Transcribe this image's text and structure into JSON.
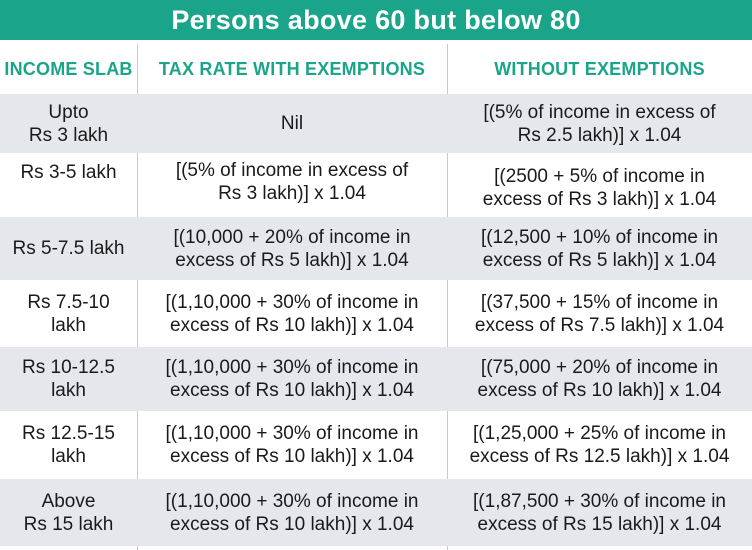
{
  "title": "Persons above 60 but below 80",
  "columns": {
    "slab": "INCOME SLAB",
    "with": "TAX RATE WITH EXEMPTIONS",
    "without": "WITHOUT EXEMPTIONS"
  },
  "rows": [
    {
      "slab": "Upto\nRs 3 lakh",
      "with": "Nil",
      "without": "[(5% of income in excess of\nRs 2.5 lakh)] x 1.04"
    },
    {
      "slab": "Rs 3-5 lakh",
      "with": "[(5% of income in excess of\nRs 3 lakh)] x 1.04",
      "without": "[(2500 + 5% of income in\nexcess of Rs 3 lakh)] x 1.04"
    },
    {
      "slab": "Rs 5-7.5 lakh",
      "with": "[(10,000 + 20% of income in\nexcess of Rs 5 lakh)] x 1.04",
      "without": "[(12,500 + 10% of income in\nexcess of Rs 5 lakh)] x 1.04"
    },
    {
      "slab": "Rs 7.5-10\nlakh",
      "with": "[(1,10,000 + 30% of income in\nexcess of Rs 10 lakh)] x 1.04",
      "without": "[(37,500 + 15% of income in\nexcess of Rs 7.5 lakh)] x 1.04"
    },
    {
      "slab": "Rs 10-12.5\nlakh",
      "with": "[(1,10,000 + 30% of income in\nexcess of Rs 10 lakh)] x 1.04",
      "without": "[(75,000 + 20% of income in\nexcess of Rs 10 lakh)] x 1.04"
    },
    {
      "slab": "Rs 12.5-15\nlakh",
      "with": "[(1,10,000 + 30% of income in\nexcess of Rs 10 lakh)] x 1.04",
      "without": "[(1,25,000 + 25% of income in\nexcess of Rs 12.5 lakh)] x 1.04"
    },
    {
      "slab": "Above\nRs 15 lakh",
      "with": "[(1,10,000 + 30% of income in\nexcess of Rs 10 lakh)] x 1.04",
      "without": "[(1,87,500 + 30% of income in\nexcess of Rs 15 lakh)] x 1.04"
    }
  ]
}
